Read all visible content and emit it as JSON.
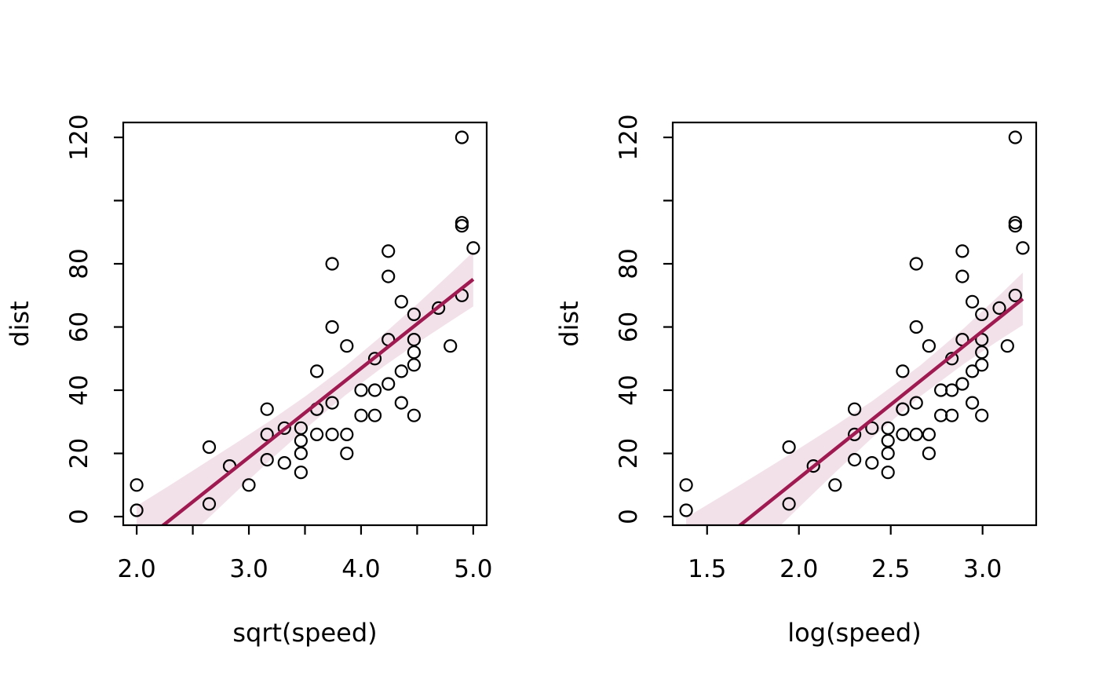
{
  "figure": {
    "background": "#ffffff",
    "point_color": "#000000",
    "axis_color": "#000000"
  },
  "chart_data": [
    {
      "type": "scatter",
      "title": "",
      "xlabel": "sqrt(speed)",
      "ylabel": "dist",
      "xlim": [
        1.88,
        5.12
      ],
      "ylim": [
        -2.72,
        124.72
      ],
      "grid": false,
      "x_ticks": {
        "values": [
          2.0,
          2.5,
          3.0,
          3.5,
          4.0,
          4.5,
          5.0
        ],
        "labels": [
          "2.0",
          "",
          "3.0",
          "",
          "4.0",
          "",
          "5.0"
        ]
      },
      "y_ticks": {
        "values": [
          0,
          20,
          40,
          60,
          80,
          100,
          120
        ],
        "labels": [
          "0",
          "20",
          "40",
          "60",
          "80",
          "",
          "120"
        ]
      },
      "points": {
        "x": [
          2,
          2,
          2.646,
          2.646,
          2.828,
          3,
          3.162,
          3.162,
          3.162,
          3.317,
          3.317,
          3.464,
          3.464,
          3.464,
          3.464,
          3.606,
          3.606,
          3.606,
          3.606,
          3.742,
          3.742,
          3.742,
          3.742,
          3.873,
          3.873,
          3.873,
          4,
          4,
          4.123,
          4.123,
          4.123,
          4.243,
          4.243,
          4.243,
          4.243,
          4.359,
          4.359,
          4.359,
          4.472,
          4.472,
          4.472,
          4.472,
          4.472,
          4.69,
          4.796,
          4.899,
          4.899,
          4.899,
          4.899,
          5
        ],
        "y": [
          2,
          10,
          4,
          22,
          16,
          10,
          18,
          26,
          34,
          17,
          28,
          14,
          20,
          24,
          28,
          26,
          34,
          34,
          46,
          26,
          36,
          60,
          80,
          20,
          26,
          54,
          32,
          40,
          32,
          40,
          50,
          42,
          56,
          76,
          84,
          36,
          46,
          68,
          32,
          48,
          52,
          56,
          64,
          66,
          54,
          70,
          92,
          93,
          120,
          85
        ]
      },
      "smooth": {
        "line_color": "#9e1a50",
        "band_color": "#f3e1ea",
        "line": {
          "x": [
            2.0,
            5.0
          ],
          "y": [
            -9.4,
            75.1
          ]
        },
        "band": {
          "x": [
            2.0,
            2.3,
            2.6,
            2.9,
            3.2,
            3.5,
            3.86,
            4.2,
            4.5,
            4.8,
            5.0
          ],
          "lower": [
            -22.2,
            -12.0,
            -1.8,
            8.3,
            18.2,
            27.7,
            38.4,
            47.5,
            54.9,
            61.9,
            66.5
          ],
          "upper": [
            3.4,
            10.0,
            16.8,
            23.6,
            30.6,
            38.0,
            47.6,
            57.7,
            67.2,
            77.1,
            83.8
          ]
        }
      }
    },
    {
      "type": "scatter",
      "title": "",
      "xlabel": "log(speed)",
      "ylabel": "dist",
      "xlim": [
        1.313,
        3.292
      ],
      "ylim": [
        -2.72,
        124.72
      ],
      "grid": false,
      "x_ticks": {
        "values": [
          1.5,
          2.0,
          2.5,
          3.0
        ],
        "labels": [
          "1.5",
          "2.0",
          "2.5",
          "3.0"
        ]
      },
      "y_ticks": {
        "values": [
          0,
          20,
          40,
          60,
          80,
          100,
          120
        ],
        "labels": [
          "0",
          "20",
          "40",
          "60",
          "80",
          "",
          "120"
        ]
      },
      "points": {
        "x": [
          1.386,
          1.386,
          1.946,
          1.946,
          2.079,
          2.197,
          2.303,
          2.303,
          2.303,
          2.398,
          2.398,
          2.485,
          2.485,
          2.485,
          2.485,
          2.565,
          2.565,
          2.565,
          2.565,
          2.639,
          2.639,
          2.639,
          2.639,
          2.708,
          2.708,
          2.708,
          2.773,
          2.773,
          2.833,
          2.833,
          2.833,
          2.89,
          2.89,
          2.89,
          2.89,
          2.944,
          2.944,
          2.944,
          2.996,
          2.996,
          2.996,
          2.996,
          2.996,
          3.091,
          3.135,
          3.178,
          3.178,
          3.178,
          3.178,
          3.219
        ],
        "y": [
          2,
          10,
          4,
          22,
          16,
          10,
          18,
          26,
          34,
          17,
          28,
          14,
          20,
          24,
          28,
          26,
          34,
          34,
          46,
          26,
          36,
          60,
          80,
          20,
          26,
          54,
          32,
          40,
          32,
          40,
          50,
          42,
          56,
          76,
          84,
          36,
          46,
          68,
          32,
          48,
          52,
          56,
          64,
          66,
          54,
          70,
          92,
          93,
          120,
          85
        ]
      },
      "smooth": {
        "line_color": "#9e1a50",
        "band_color": "#f3e1ea",
        "line": {
          "x": [
            1.386,
            3.219
          ],
          "y": [
            -16.4,
            68.9
          ]
        },
        "band": {
          "x": [
            1.386,
            1.6,
            1.8,
            2.0,
            2.2,
            2.4,
            2.662,
            2.9,
            3.1,
            3.219
          ],
          "lower": [
            -32.4,
            -20.0,
            -8.5,
            2.9,
            14.1,
            25.0,
            38.1,
            48.4,
            56.2,
            60.6
          ],
          "upper": [
            -0.3,
            7.2,
            14.3,
            21.5,
            28.9,
            36.6,
            47.9,
            59.7,
            70.5,
            77.2
          ]
        }
      }
    }
  ]
}
